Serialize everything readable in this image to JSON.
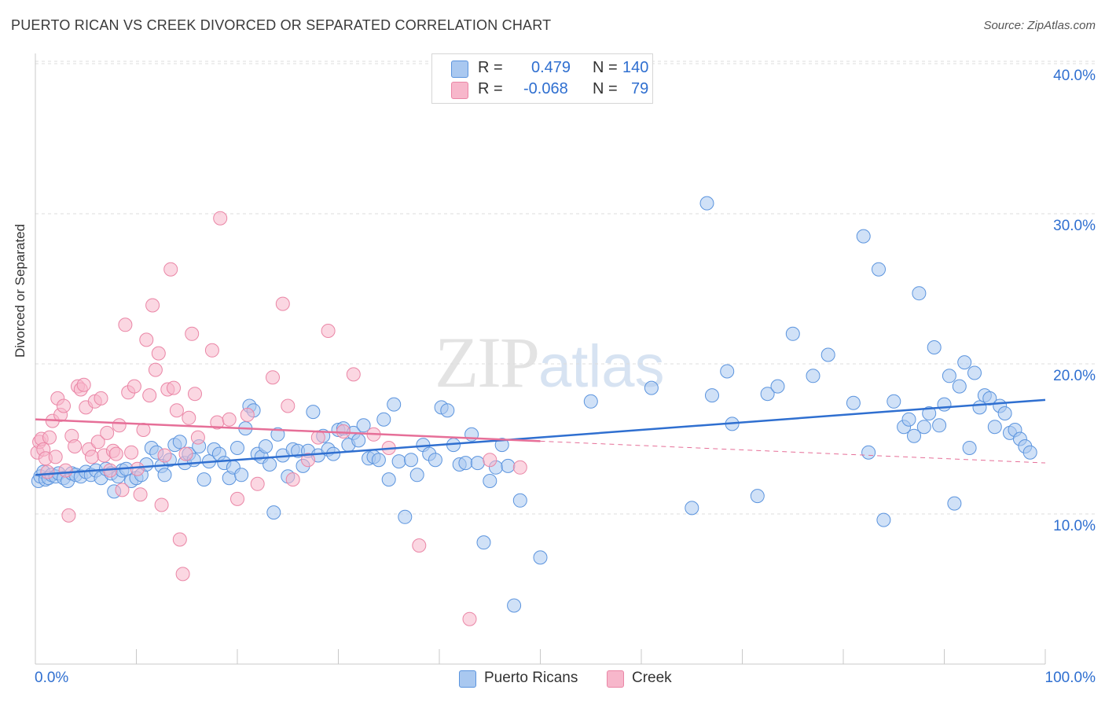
{
  "header": {
    "title": "PUERTO RICAN VS CREEK DIVORCED OR SEPARATED CORRELATION CHART",
    "source": "Source: ZipAtlas.com"
  },
  "watermark": {
    "zip": "ZIP",
    "atlas": "atlas"
  },
  "legend": {
    "rows": [
      {
        "r_label": "R =",
        "r_value": "0.479",
        "n_label": "N =",
        "n_value": "140",
        "color": "#a9c8f0"
      },
      {
        "r_label": "R =",
        "r_value": "-0.068",
        "n_label": "N =",
        "n_value": "79",
        "color": "#f7b7cb"
      }
    ]
  },
  "bottom_legend": {
    "items": [
      {
        "label": "Puerto Ricans",
        "color": "#a9c8f0"
      },
      {
        "label": "Creek",
        "color": "#f7b7cb"
      }
    ]
  },
  "axis": {
    "x_min_label": "0.0%",
    "x_max_label": "100.0%",
    "y_title": "Divorced or Separated",
    "y_ticks": [
      "10.0%",
      "20.0%",
      "30.0%",
      "40.0%"
    ]
  },
  "chart_data": {
    "type": "scatter",
    "xlim": [
      0,
      100
    ],
    "ylim": [
      0,
      42
    ],
    "xlabel": "",
    "ylabel": "Divorced or Separated",
    "grid": true,
    "series": [
      {
        "name": "Puerto Ricans",
        "color": "#5b94de",
        "fill": "#a9c8f0",
        "trend": {
          "x0": 0,
          "y0": 12.6,
          "x1": 100,
          "y1": 17.6,
          "dashed_from": null
        },
        "points": [
          [
            0.3,
            12.2
          ],
          [
            0.5,
            12.5
          ],
          [
            0.8,
            12.8
          ],
          [
            1.0,
            12.3
          ],
          [
            1.3,
            12.4
          ],
          [
            1.6,
            12.6
          ],
          [
            2.0,
            12.5
          ],
          [
            2.3,
            12.7
          ],
          [
            2.8,
            12.4
          ],
          [
            3.2,
            12.2
          ],
          [
            3.6,
            12.7
          ],
          [
            4.0,
            12.6
          ],
          [
            4.5,
            12.5
          ],
          [
            5.0,
            12.8
          ],
          [
            5.5,
            12.6
          ],
          [
            6.0,
            12.9
          ],
          [
            6.5,
            12.4
          ],
          [
            7.0,
            13.0
          ],
          [
            7.5,
            12.7
          ],
          [
            7.8,
            11.5
          ],
          [
            8.2,
            12.5
          ],
          [
            8.6,
            12.9
          ],
          [
            9.0,
            13.0
          ],
          [
            9.5,
            12.2
          ],
          [
            10.0,
            12.4
          ],
          [
            10.5,
            12.6
          ],
          [
            11.0,
            13.3
          ],
          [
            11.5,
            14.4
          ],
          [
            12.0,
            14.1
          ],
          [
            12.5,
            13.2
          ],
          [
            12.8,
            12.6
          ],
          [
            13.3,
            13.6
          ],
          [
            13.8,
            14.6
          ],
          [
            14.3,
            14.8
          ],
          [
            14.8,
            13.4
          ],
          [
            15.2,
            14.0
          ],
          [
            15.7,
            13.6
          ],
          [
            16.2,
            14.5
          ],
          [
            16.7,
            12.3
          ],
          [
            17.2,
            13.5
          ],
          [
            17.7,
            14.3
          ],
          [
            18.2,
            14.0
          ],
          [
            18.7,
            13.4
          ],
          [
            19.2,
            12.4
          ],
          [
            19.6,
            13.1
          ],
          [
            20.0,
            14.4
          ],
          [
            20.4,
            12.6
          ],
          [
            20.8,
            15.7
          ],
          [
            21.2,
            17.2
          ],
          [
            21.6,
            16.9
          ],
          [
            22.0,
            14.0
          ],
          [
            22.4,
            13.8
          ],
          [
            22.8,
            14.5
          ],
          [
            23.2,
            13.3
          ],
          [
            23.6,
            10.1
          ],
          [
            24.0,
            15.3
          ],
          [
            24.5,
            13.9
          ],
          [
            25.0,
            12.5
          ],
          [
            25.5,
            14.3
          ],
          [
            26.0,
            14.2
          ],
          [
            26.5,
            13.2
          ],
          [
            27.0,
            14.2
          ],
          [
            27.5,
            16.8
          ],
          [
            28.0,
            13.9
          ],
          [
            28.5,
            15.2
          ],
          [
            29.0,
            14.3
          ],
          [
            29.5,
            14.0
          ],
          [
            30.0,
            15.6
          ],
          [
            30.5,
            15.7
          ],
          [
            31.0,
            14.6
          ],
          [
            31.5,
            15.4
          ],
          [
            32.0,
            14.9
          ],
          [
            32.5,
            15.9
          ],
          [
            33.0,
            13.7
          ],
          [
            33.5,
            13.8
          ],
          [
            34.0,
            13.6
          ],
          [
            34.5,
            16.3
          ],
          [
            35.0,
            12.3
          ],
          [
            35.5,
            17.3
          ],
          [
            36.0,
            13.5
          ],
          [
            36.6,
            9.8
          ],
          [
            37.2,
            13.6
          ],
          [
            37.8,
            12.6
          ],
          [
            38.4,
            14.6
          ],
          [
            39.0,
            14.0
          ],
          [
            39.6,
            13.6
          ],
          [
            40.2,
            17.1
          ],
          [
            40.8,
            16.9
          ],
          [
            41.4,
            14.6
          ],
          [
            42.0,
            13.3
          ],
          [
            42.6,
            13.4
          ],
          [
            43.2,
            15.3
          ],
          [
            43.8,
            13.4
          ],
          [
            44.4,
            8.1
          ],
          [
            45.0,
            12.2
          ],
          [
            45.6,
            13.1
          ],
          [
            46.2,
            14.6
          ],
          [
            46.8,
            13.2
          ],
          [
            47.4,
            3.9
          ],
          [
            48.0,
            10.9
          ],
          [
            50.0,
            7.1
          ],
          [
            55.0,
            17.5
          ],
          [
            61.0,
            18.4
          ],
          [
            65.0,
            10.4
          ],
          [
            66.5,
            30.7
          ],
          [
            67.0,
            17.9
          ],
          [
            68.5,
            19.5
          ],
          [
            69.0,
            16.0
          ],
          [
            71.5,
            11.2
          ],
          [
            72.5,
            18.0
          ],
          [
            73.5,
            18.5
          ],
          [
            75.0,
            22.0
          ],
          [
            77.0,
            19.2
          ],
          [
            78.5,
            20.6
          ],
          [
            81.0,
            17.4
          ],
          [
            82.0,
            28.5
          ],
          [
            82.5,
            14.1
          ],
          [
            83.5,
            26.3
          ],
          [
            84.0,
            9.6
          ],
          [
            85.0,
            17.5
          ],
          [
            86.0,
            15.8
          ],
          [
            86.5,
            16.3
          ],
          [
            87.0,
            15.2
          ],
          [
            87.5,
            24.7
          ],
          [
            88.0,
            15.8
          ],
          [
            88.5,
            16.7
          ],
          [
            89.0,
            21.1
          ],
          [
            89.5,
            15.9
          ],
          [
            90.0,
            17.3
          ],
          [
            90.5,
            19.2
          ],
          [
            91.0,
            10.7
          ],
          [
            91.5,
            18.5
          ],
          [
            92.0,
            20.1
          ],
          [
            92.5,
            14.4
          ],
          [
            93.0,
            19.4
          ],
          [
            93.5,
            17.1
          ],
          [
            94.0,
            17.9
          ],
          [
            94.5,
            17.7
          ],
          [
            95.0,
            15.8
          ],
          [
            95.5,
            17.2
          ],
          [
            96.0,
            16.7
          ],
          [
            96.5,
            15.4
          ],
          [
            97.0,
            15.6
          ],
          [
            97.5,
            15.0
          ],
          [
            98.0,
            14.5
          ],
          [
            98.5,
            14.1
          ]
        ]
      },
      {
        "name": "Creek",
        "color": "#ea86a6",
        "fill": "#f7b7cb",
        "trend": {
          "x0": 0,
          "y0": 16.3,
          "x1": 100,
          "y1": 13.4,
          "dashed_from": 50
        },
        "points": [
          [
            0.2,
            14.1
          ],
          [
            0.4,
            14.8
          ],
          [
            0.6,
            15.0
          ],
          [
            0.8,
            14.3
          ],
          [
            1.0,
            13.7
          ],
          [
            1.2,
            12.8
          ],
          [
            1.4,
            15.1
          ],
          [
            1.7,
            16.2
          ],
          [
            2.0,
            13.8
          ],
          [
            2.2,
            17.7
          ],
          [
            2.5,
            16.6
          ],
          [
            2.8,
            17.2
          ],
          [
            3.0,
            12.9
          ],
          [
            3.3,
            9.9
          ],
          [
            3.6,
            15.2
          ],
          [
            3.9,
            14.5
          ],
          [
            4.2,
            18.5
          ],
          [
            4.5,
            18.3
          ],
          [
            4.8,
            18.6
          ],
          [
            5.0,
            17.1
          ],
          [
            5.3,
            14.3
          ],
          [
            5.6,
            13.8
          ],
          [
            5.9,
            17.5
          ],
          [
            6.2,
            14.8
          ],
          [
            6.5,
            17.7
          ],
          [
            6.8,
            13.9
          ],
          [
            7.1,
            15.4
          ],
          [
            7.4,
            12.9
          ],
          [
            7.7,
            14.2
          ],
          [
            8.0,
            14.0
          ],
          [
            8.3,
            15.9
          ],
          [
            8.6,
            11.6
          ],
          [
            8.9,
            22.6
          ],
          [
            9.2,
            18.1
          ],
          [
            9.5,
            14.1
          ],
          [
            9.8,
            18.5
          ],
          [
            10.1,
            13.0
          ],
          [
            10.4,
            11.3
          ],
          [
            10.7,
            15.6
          ],
          [
            11.0,
            21.6
          ],
          [
            11.3,
            17.9
          ],
          [
            11.6,
            23.9
          ],
          [
            11.9,
            19.6
          ],
          [
            12.2,
            20.7
          ],
          [
            12.5,
            10.6
          ],
          [
            12.8,
            13.9
          ],
          [
            13.1,
            18.3
          ],
          [
            13.4,
            26.3
          ],
          [
            13.7,
            18.4
          ],
          [
            14.0,
            16.9
          ],
          [
            14.3,
            8.3
          ],
          [
            14.6,
            6.0
          ],
          [
            14.9,
            14.0
          ],
          [
            15.2,
            16.4
          ],
          [
            15.5,
            22.0
          ],
          [
            15.8,
            18.0
          ],
          [
            16.1,
            15.1
          ],
          [
            17.5,
            20.9
          ],
          [
            18.0,
            16.1
          ],
          [
            18.3,
            29.7
          ],
          [
            19.2,
            16.3
          ],
          [
            20.0,
            11.0
          ],
          [
            21.0,
            16.6
          ],
          [
            22.0,
            12.0
          ],
          [
            23.5,
            19.1
          ],
          [
            24.5,
            24.0
          ],
          [
            25.0,
            17.2
          ],
          [
            25.5,
            12.3
          ],
          [
            27.0,
            13.6
          ],
          [
            28.0,
            15.1
          ],
          [
            29.0,
            22.2
          ],
          [
            30.5,
            15.5
          ],
          [
            31.5,
            19.3
          ],
          [
            33.5,
            15.3
          ],
          [
            35.0,
            14.4
          ],
          [
            38.0,
            7.9
          ],
          [
            43.0,
            3.0
          ],
          [
            45.0,
            13.6
          ],
          [
            48.0,
            13.1
          ]
        ]
      }
    ]
  }
}
